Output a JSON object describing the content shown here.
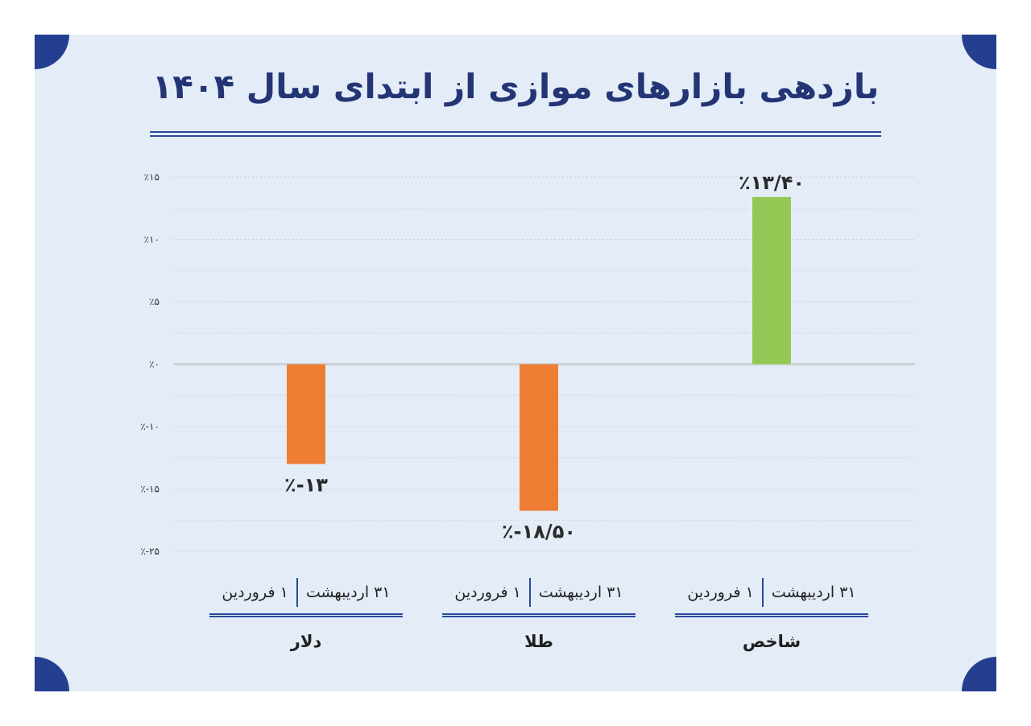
{
  "title": "بازدهی بازارهای موازی از ابتدای سال ۱۴۰۴",
  "chart_data": {
    "type": "bar",
    "title": "بازدهی بازارهای موازی از ابتدای سال ۱۴۰۴",
    "categories": [
      "شاخص",
      "طلا",
      "دلار"
    ],
    "values": [
      13.4,
      -18.5,
      -13
    ],
    "value_labels": [
      "٪۱۳/۴۰",
      "٪-۱۸/۵۰",
      "٪-۱۳"
    ],
    "y_ticks": [
      {
        "value": 15,
        "label": "٪۱۵"
      },
      {
        "value": 10,
        "label": "٪۱۰"
      },
      {
        "value": 5,
        "label": "٪۵"
      },
      {
        "value": 0,
        "label": "٪۰"
      },
      {
        "value": -10,
        "label": "٪-۱۰"
      },
      {
        "value": -15,
        "label": "٪-۱۵"
      },
      {
        "value": -25,
        "label": "٪-۲۵"
      }
    ],
    "period_start": "۱ فروردین",
    "period_end": "۳۱ اردیبهشت",
    "grid": true,
    "colors": {
      "positive": "#92c853",
      "negative": "#ee7d34"
    }
  },
  "colors": {
    "background": "#e4edf7",
    "accent": "#243f8f",
    "title": "#243576"
  }
}
